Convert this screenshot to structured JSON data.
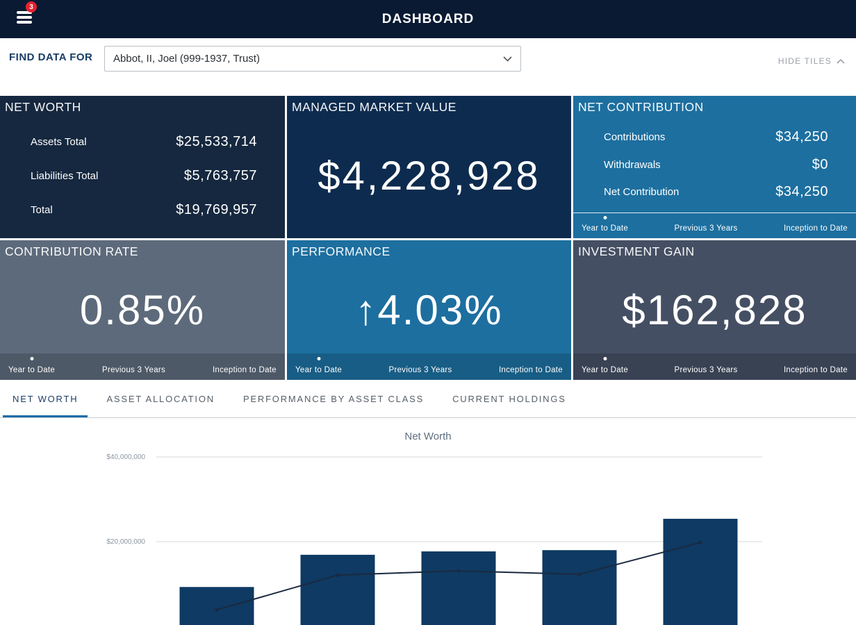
{
  "header": {
    "title": "DASHBOARD",
    "menu_badge": "3"
  },
  "finder": {
    "label": "FIND DATA FOR",
    "selected": "Abbot, II, Joel (999-1937, Trust)",
    "hide_tiles_label": "HIDE TILES"
  },
  "period_tabs": [
    "Year to Date",
    "Previous 3 Years",
    "Inception to Date"
  ],
  "tiles": {
    "net_worth": {
      "title": "NET WORTH",
      "rows": [
        {
          "label": "Assets Total",
          "value": "$25,533,714"
        },
        {
          "label": "Liabilities Total",
          "value": "$5,763,757"
        },
        {
          "label": "Total",
          "value": "$19,769,957"
        }
      ]
    },
    "managed_market_value": {
      "title": "MANAGED MARKET VALUE",
      "value": "$4,228,928"
    },
    "net_contribution": {
      "title": "NET CONTRIBUTION",
      "rows": [
        {
          "label": "Contributions",
          "value": "$34,250"
        },
        {
          "label": "Withdrawals",
          "value": "$0"
        },
        {
          "label": "Net Contribution",
          "value": "$34,250"
        }
      ]
    },
    "contribution_rate": {
      "title": "CONTRIBUTION RATE",
      "value": "0.85%"
    },
    "performance": {
      "title": "PERFORMANCE",
      "arrow": "↑",
      "value": "4.03%"
    },
    "investment_gain": {
      "title": "INVESTMENT GAIN",
      "value": "$162,828"
    }
  },
  "section_tabs": [
    {
      "label": "NET WORTH",
      "active": true
    },
    {
      "label": "ASSET ALLOCATION",
      "active": false
    },
    {
      "label": "PERFORMANCE BY ASSET CLASS",
      "active": false
    },
    {
      "label": "CURRENT HOLDINGS",
      "active": false
    }
  ],
  "chart_data": {
    "type": "bar",
    "title": "Net Worth",
    "ylim": [
      0,
      40000000
    ],
    "y_ticks": [
      {
        "label": "$40,000,000",
        "value": 40000000
      },
      {
        "label": "$20,000,000",
        "value": 20000000
      }
    ],
    "x_tick_labels_visible": false,
    "grid": true,
    "series": [
      {
        "name": "Net Worth bars",
        "type": "bar",
        "values": [
          9300000,
          16900000,
          17700000,
          18000000,
          25400000
        ]
      },
      {
        "name": "Trend line",
        "type": "line",
        "values": [
          3900000,
          12100000,
          13100000,
          12300000,
          19800000
        ]
      }
    ]
  },
  "colors": {
    "navy_bar": "#0a1a33",
    "badge_red": "#e8212e",
    "tile_dark_navy": "#15283f",
    "tile_market_navy": "#0d2b4e",
    "tile_blue": "#1d6f9f",
    "tile_gray": "#5d6a7b",
    "tile_slate": "#454f63",
    "accent_blue": "#1c6ca6",
    "bar_fill": "#0e3a63",
    "line_stroke": "#1b2940",
    "grid_line": "#d9d9d9"
  }
}
